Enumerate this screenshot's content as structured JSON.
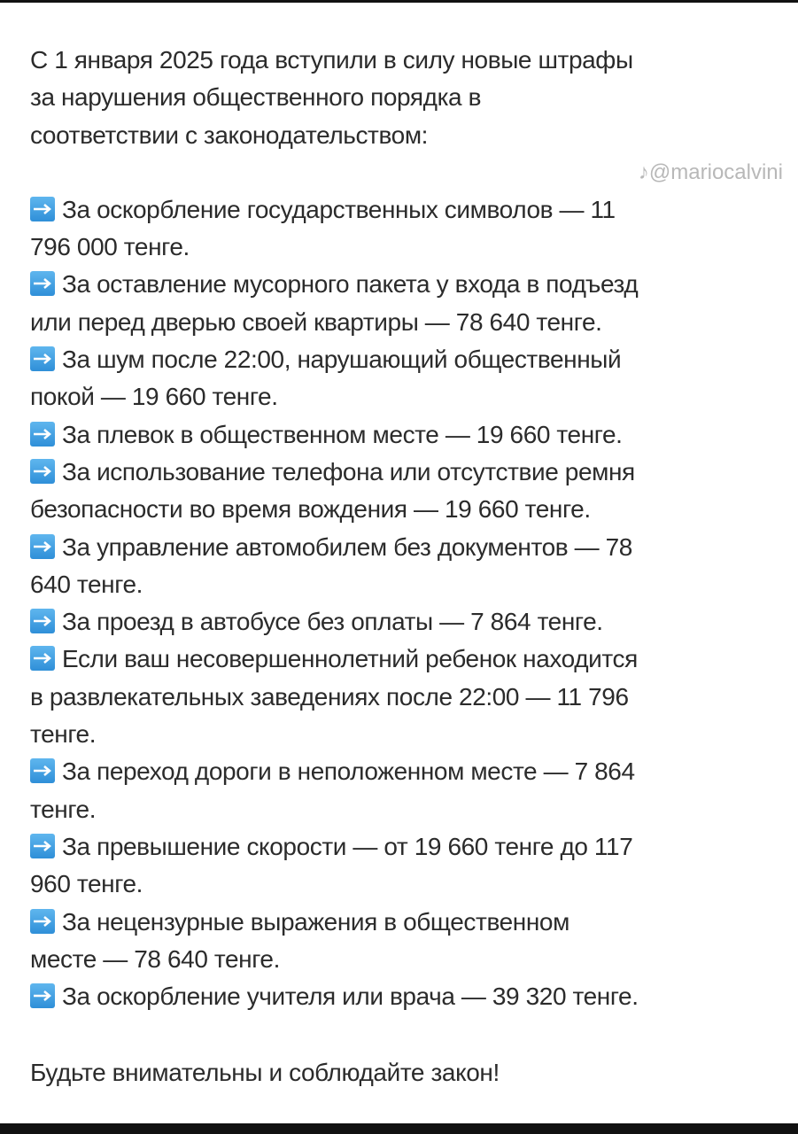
{
  "intro_lines": [
    "С 1 января 2025 года вступили в силу новые штрафы",
    "за нарушения общественного порядка в",
    "соответствии с законодательством:"
  ],
  "bullet_icon": "right-arrow-emoji-icon",
  "accent_color": "#3a9be0",
  "items": [
    {
      "lines": [
        "За оскорбление государственных символов — 11",
        "796 000 тенге."
      ]
    },
    {
      "lines": [
        "За оставление мусорного пакета у входа в подъезд",
        "или перед дверью своей квартиры — 78 640 тенге."
      ]
    },
    {
      "lines": [
        "За шум после 22:00, нарушающий общественный",
        "покой — 19 660 тенге."
      ]
    },
    {
      "lines": [
        "За плевок в общественном месте — 19 660 тенге."
      ]
    },
    {
      "lines": [
        "За использование телефона или отсутствие ремня",
        "безопасности во время вождения — 19 660 тенге."
      ]
    },
    {
      "lines": [
        "За управление автомобилем без документов — 78",
        "640 тенге."
      ]
    },
    {
      "lines": [
        "За проезд в автобусе без оплаты — 7 864 тенге."
      ]
    },
    {
      "lines": [
        "Если ваш несовершеннолетний ребенок находится",
        "в развлекательных заведениях после 22:00 — 11 796",
        "тенге."
      ]
    },
    {
      "lines": [
        "За переход дороги в неположенном месте — 7 864",
        "тенге."
      ]
    },
    {
      "lines": [
        "За превышение скорости — от 19 660 тенге до 117",
        "960 тенге."
      ]
    },
    {
      "lines": [
        "За нецензурные выражения в общественном",
        "месте — 78 640 тенге."
      ]
    },
    {
      "lines": [
        "За оскорбление учителя или врача — 39 320 тенге."
      ]
    }
  ],
  "outro": "Будьте внимательны и соблюдайте закон!",
  "watermark": "@mariocalvini"
}
